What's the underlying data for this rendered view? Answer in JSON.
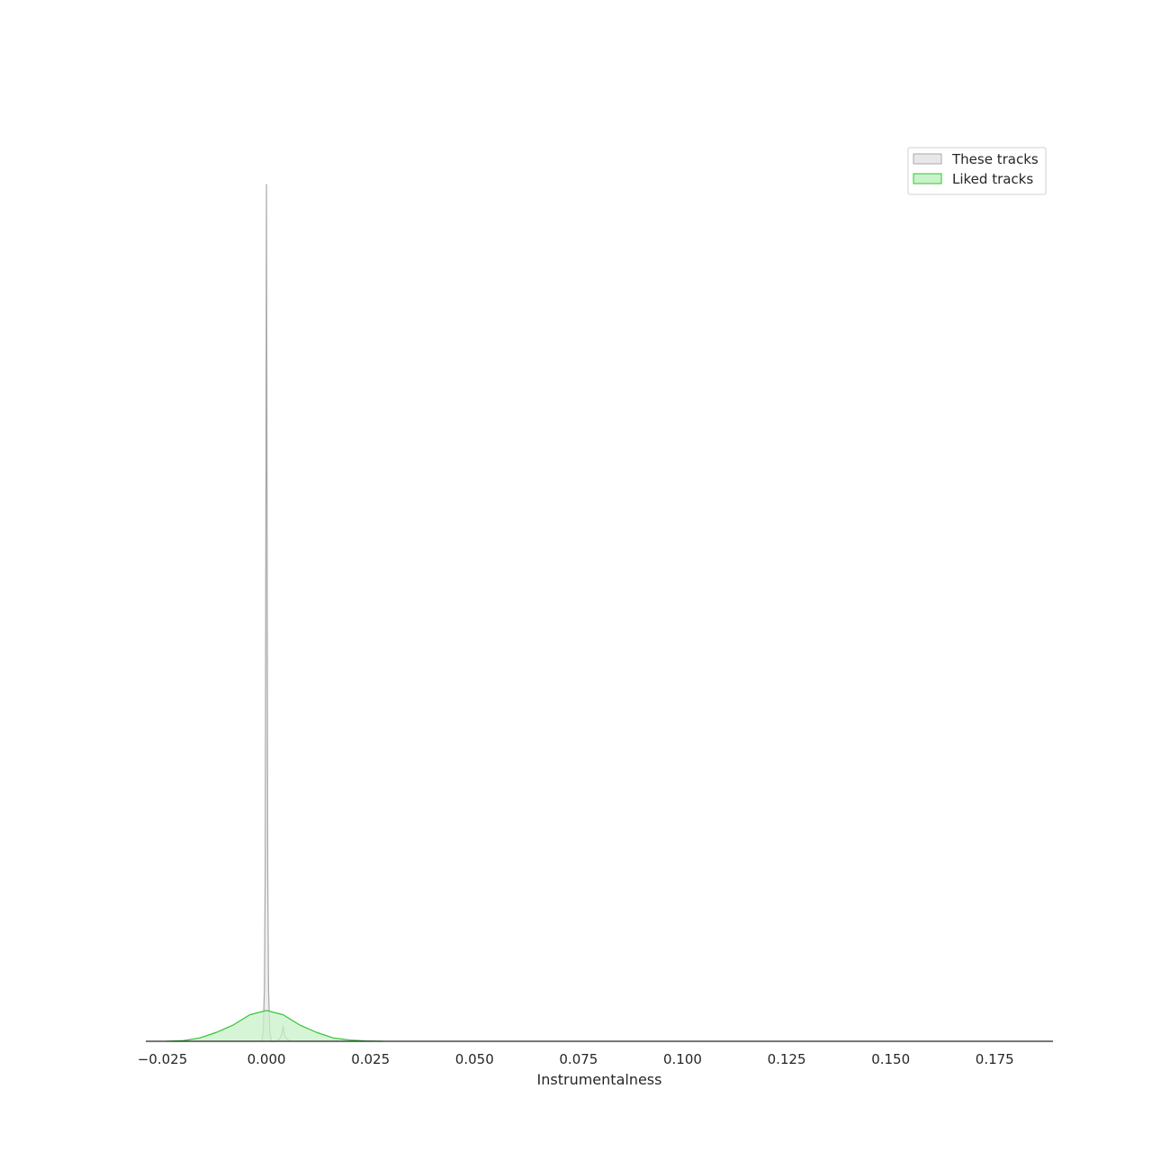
{
  "chart_data": {
    "type": "area",
    "xlabel": "Instrumentalness",
    "ylabel": "",
    "xlim": [
      -0.029,
      0.189
    ],
    "grid": false,
    "legend_position": "top-right",
    "x_ticks": [
      {
        "value": -0.025,
        "label": "−0.025"
      },
      {
        "value": 0.0,
        "label": "0.000"
      },
      {
        "value": 0.025,
        "label": "0.025"
      },
      {
        "value": 0.05,
        "label": "0.050"
      },
      {
        "value": 0.075,
        "label": "0.075"
      },
      {
        "value": 0.1,
        "label": "0.100"
      },
      {
        "value": 0.125,
        "label": "0.125"
      },
      {
        "value": 0.15,
        "label": "0.150"
      },
      {
        "value": 0.175,
        "label": "0.175"
      }
    ],
    "series": [
      {
        "name": "These tracks",
        "fill": "#e8e8e8",
        "stroke": "#a8a8a8",
        "x": [
          -0.0012,
          -0.0008,
          -0.0005,
          -0.0003,
          -0.00015,
          0.0,
          0.00015,
          0.0003,
          0.0005,
          0.0008,
          0.0012,
          0.002,
          0.003,
          0.0035,
          0.0038,
          0.004,
          0.0042,
          0.0045,
          0.005,
          0.006
        ],
        "density": [
          0.0,
          0.01,
          0.06,
          0.2,
          0.6,
          1.0,
          0.6,
          0.2,
          0.06,
          0.01,
          0.0,
          0.0,
          0.002,
          0.006,
          0.011,
          0.018,
          0.011,
          0.006,
          0.002,
          0.0
        ]
      },
      {
        "name": "Liked tracks",
        "fill": "#c8f2c8",
        "stroke": "#33c433",
        "x": [
          -0.024,
          -0.02,
          -0.016,
          -0.012,
          -0.008,
          -0.004,
          0.0,
          0.004,
          0.008,
          0.012,
          0.016,
          0.02,
          0.024,
          0.028
        ],
        "density": [
          0.0,
          0.0008,
          0.004,
          0.0105,
          0.019,
          0.031,
          0.036,
          0.031,
          0.019,
          0.0105,
          0.004,
          0.0015,
          0.0004,
          0.0
        ]
      }
    ]
  }
}
